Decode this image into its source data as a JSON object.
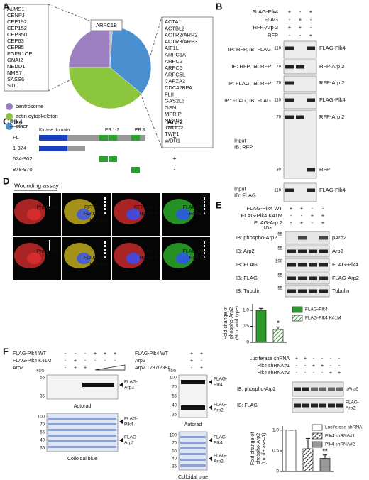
{
  "panel_labels": [
    "A",
    "B",
    "C",
    "D",
    "E",
    "F"
  ],
  "a": {
    "centrosome_genes": [
      "ALMS1",
      "CENPJ",
      "CEP192",
      "CEP152",
      "CEP350",
      "CEP63",
      "CEP85",
      "FGFR1OP",
      "GNAI2",
      "NEDD1",
      "NME7",
      "SASS6",
      "STIL"
    ],
    "actin_genes": [
      "ACTA1",
      "ACTBL2",
      "ACTR2/ARP2",
      "ACTR3/ARP3",
      "AIF1L",
      "ARPC1A",
      "ARPC2",
      "ARPC5",
      "ARPC5L",
      "CAPZA2",
      "CDC42BPA",
      "FLII",
      "GAS2L3",
      "GSN",
      "MPRIP",
      "NEXN",
      "TMOD2",
      "TWF1",
      "WDR1"
    ]
  },
  "b": {
    "conditions": [
      {
        "label": "FLAG-Plk4",
        "signs": [
          "+",
          "-",
          "+"
        ]
      },
      {
        "label": "FLAG",
        "signs": [
          "-",
          "+",
          "-"
        ]
      },
      {
        "label": "RFP-Arp 2",
        "signs": [
          "+",
          "+",
          "-"
        ]
      },
      {
        "label": "RFP",
        "signs": [
          "-",
          "-",
          "+"
        ]
      }
    ],
    "blots": [
      {
        "label": [
          "IP: RFP, IB: FLAG"
        ],
        "mw": [
          110
        ],
        "bands": [
          "FLAG-Plk4"
        ]
      },
      {
        "label": [
          "IP: RFP, IB: RFP"
        ],
        "mw": [
          70
        ],
        "bands": [
          "RFP-Arp 2"
        ]
      },
      {
        "label": [
          "IP: FLAG, IB: RFP"
        ],
        "mw": [
          70
        ],
        "bands": [
          "RFP-Arp 2"
        ]
      },
      {
        "label": [
          "IP: FLAG, IB: FLAG"
        ],
        "mw": [
          110
        ],
        "bands": [
          "FLAG-Plk4"
        ]
      },
      {
        "label": [
          "Input",
          "IB: RFP"
        ],
        "mw": [
          70,
          30
        ],
        "bands": [
          "RFP-Arp 2",
          "RFP"
        ]
      },
      {
        "label": [
          "Input",
          "IB: FLAG"
        ],
        "mw": [
          110
        ],
        "bands": [
          "FLAG-Plk4"
        ]
      }
    ]
  },
  "c": {
    "title": "Plk4",
    "binding_title": "Arp 2",
    "domains": [
      "Kinase domain",
      "PB 1-2",
      "PB 3"
    ],
    "constructs": [
      {
        "label": "FL",
        "arp2": "+"
      },
      {
        "label": "1-374",
        "arp2": "-"
      },
      {
        "label": "624-902",
        "arp2": "+"
      },
      {
        "label": "878-970",
        "arp2": "-"
      }
    ]
  },
  "d": {
    "title": "Wounding assay",
    "panels": [
      [
        "Phalloidin"
      ],
      [
        "RFP-Arp 2",
        "FLAG-Plk4",
        "Hoechst"
      ],
      [
        "RFP-Arp 2",
        "Hoechst"
      ],
      [
        "FLAG-Plk4",
        "Hoechst"
      ],
      [
        "Phalloidin"
      ],
      [
        "Arp 2",
        "FLAG-Plk4",
        "Hoechst"
      ],
      [
        "Arp 2",
        "Hoechst"
      ],
      [
        "FLAG-Plk4",
        "Hoechst"
      ]
    ]
  },
  "e": {
    "conditions": [
      {
        "label": "FLAG-Plk4 WT",
        "signs": [
          "+",
          "+",
          "-",
          "-"
        ]
      },
      {
        "label": "FLAG-Plk4 K41M",
        "signs": [
          "-",
          "-",
          "+",
          "+"
        ]
      },
      {
        "label": "FLAG-Arp 2",
        "signs": [
          "-",
          "+",
          "-",
          "+"
        ]
      }
    ],
    "kda": "kDa",
    "blots": [
      {
        "label": "IB: phospho-Arp2",
        "mw": [
          55
        ],
        "band": "pArp2"
      },
      {
        "label": "IB: Arp2",
        "mw": [
          55
        ],
        "band": "Arp2"
      },
      {
        "label": "IB: FLAG",
        "mw": [
          100
        ],
        "band": "FLAG-Plk4"
      },
      {
        "label": "IB: FLAG",
        "mw": [
          55
        ],
        "band": "FLAG-Arp2"
      },
      {
        "label": "IB: Tubulin",
        "mw": [
          55
        ],
        "band": "Tubulin"
      }
    ]
  },
  "f": {
    "left": {
      "conditions": [
        {
          "label": "FLAG-Plk4 WT",
          "signs": [
            "-",
            "-",
            "-",
            "+",
            "+",
            "+"
          ]
        },
        {
          "label": "FLAG-Plk4 K41M",
          "signs": [
            "-",
            "+",
            "-",
            "-",
            "-",
            "-"
          ]
        },
        {
          "label": "Arp2",
          "signs": [
            "-",
            "+",
            "+"
          ]
        }
      ],
      "kda": "kDa",
      "autorad_mw": [
        55,
        35
      ],
      "autorad_bands": [
        [
          "FLAG-",
          "Arp2"
        ]
      ],
      "autorad": "Autorad",
      "blue_mw": [
        100,
        70,
        55,
        40,
        35
      ],
      "blue_bands": [
        [
          "FLAG-",
          "Plk4"
        ],
        [
          "FLAG-",
          "Arp2"
        ]
      ],
      "blue": "Colloidal blue"
    },
    "middle": {
      "conditions": [
        {
          "label": "FLAG-Plk4 WT",
          "signs": [
            "+",
            "+"
          ]
        },
        {
          "label": "Arp2",
          "signs": [
            "+",
            "-"
          ]
        },
        {
          "label": "Arp2 T237/238A",
          "signs": [
            "-",
            "+"
          ]
        }
      ],
      "kda": "kDa",
      "autorad_mw": [
        100,
        70,
        55,
        40,
        35
      ],
      "autorad_bands": [
        [
          "FLAG-",
          "Plk4"
        ],
        [
          "FLAG-",
          "Arp2"
        ]
      ],
      "autorad": "Autorad",
      "blue_mw": [
        100,
        70,
        55,
        40,
        35
      ],
      "blue_bands": [
        [
          "FLAG-",
          "Plk4"
        ],
        [
          "FLAG-",
          "Arp2"
        ]
      ],
      "blue": "Colloidal blue"
    },
    "right": {
      "conditions": [
        {
          "label": "Luciferase shRNA",
          "signs": [
            "+",
            "+",
            "-",
            "-",
            "-",
            "-"
          ]
        },
        {
          "label": "Plk4 shRNA#1",
          "signs": [
            "-",
            "-",
            "+",
            "+",
            "-",
            "-"
          ]
        },
        {
          "label": "Plk4 shRNA#2",
          "signs": [
            "-",
            "-",
            "-",
            "-",
            "+",
            "+"
          ]
        }
      ],
      "blots": [
        {
          "label": "IB: phospho-Arp2",
          "band": [
            "pArp2"
          ]
        },
        {
          "label": "IB: FLAG",
          "band": [
            "FLAG-",
            "Arp2"
          ]
        }
      ]
    }
  },
  "chart_data": [
    {
      "type": "pie",
      "categories": [
        "centrosome",
        "actin cytoskeleton",
        "other"
      ],
      "values": [
        25,
        39,
        35
      ],
      "colors": [
        "#9b7fc0",
        "#8cc63f",
        "#4a8fd0"
      ],
      "callout": {
        "label": "ARPC1B",
        "value": 1,
        "color": "#aaaaaa"
      }
    },
    {
      "type": "bar",
      "categories": [
        "FLAG-Plk4",
        "FLAG-Plk4 K41M"
      ],
      "values": [
        1.0,
        0.4
      ],
      "errors": [
        0.06,
        0.08
      ],
      "colors": [
        "#2e9a2e",
        "#2e9a2e"
      ],
      "hatch": [
        false,
        true
      ],
      "significance": [
        null,
        "*"
      ],
      "ylabel": [
        "Fold change of",
        "phospho-Arp2",
        "(% of wild type)"
      ],
      "ylim": [
        0,
        1.2
      ],
      "yticks": [
        0,
        0.5,
        {
          "value": 1,
          "label": "1.0"
        }
      ]
    },
    {
      "type": "bar",
      "categories": [
        "Luciferase shRNA",
        "Plk4 shRNA#1",
        "Plk4 shRNA#2"
      ],
      "values": [
        1.0,
        0.55,
        0.32
      ],
      "errors": [
        0.0,
        0.25,
        0.08
      ],
      "colors": [
        "#ffffff",
        "#333333",
        "#999999"
      ],
      "hatch": [
        false,
        true,
        false
      ],
      "significance": [
        null,
        null,
        "**"
      ],
      "ylabel": [
        "Fold change of",
        "phospho-Arp2",
        "(Luciferase=1)"
      ],
      "ylim": [
        0,
        1.1
      ],
      "yticks": [
        0,
        0.5,
        {
          "value": 1,
          "label": "1.0"
        }
      ]
    }
  ]
}
